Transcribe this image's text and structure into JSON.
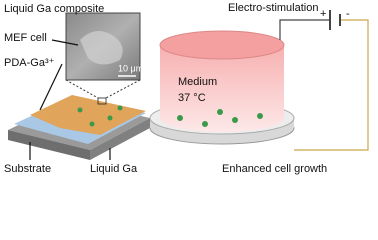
{
  "labels": {
    "composite": "Liquid Ga composite",
    "mef_cell": "MEF cell",
    "pda": "PDA-Ga³⁺",
    "scale_bar": "10 μm",
    "substrate": "Substrate",
    "liquid_ga": "Liquid Ga",
    "stimulation": "Electro-stimulation",
    "plus": "+",
    "minus": "-",
    "medium": "Medium",
    "temperature": "37 °C",
    "growth": "Enhanced cell growth"
  }
}
